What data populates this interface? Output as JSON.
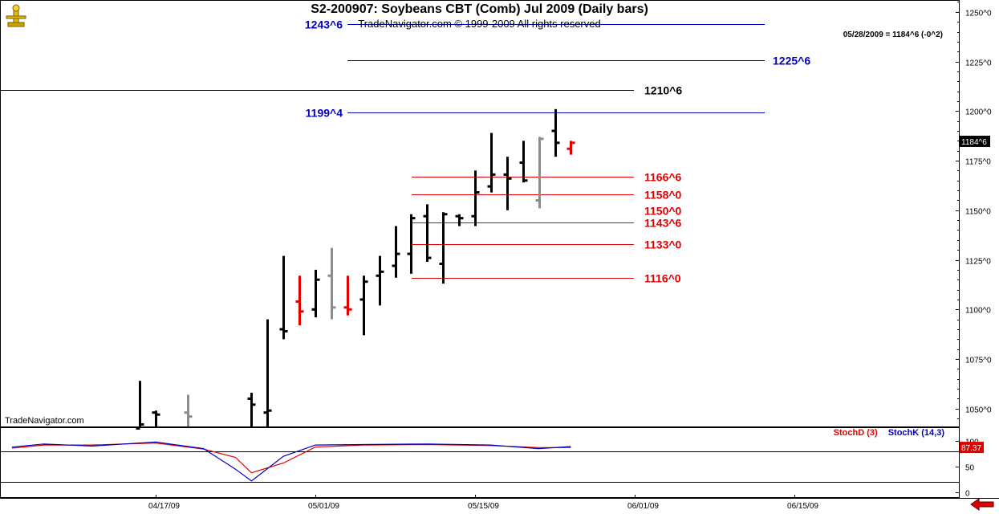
{
  "header": {
    "title": "S2-200907:  Soybeans CBT (Comb) Jul 2009  (Daily bars)",
    "subtitle": "TradeNavigator.com © 1999-2009 All rights reserved",
    "last_quote": "05/28/2009 = 1184^6 (-0^2)",
    "watermark": "TradeNavigator.com"
  },
  "colors": {
    "bar_black": "#000000",
    "bar_gray": "#8c8c8c",
    "bar_red": "#e00000",
    "resistance": "#0000c0",
    "support": "#e00000",
    "stoch_d": "#e00000",
    "stoch_k": "#0000c0"
  },
  "chart_data": [
    {
      "type": "ohlc",
      "title": "S2-200907:  Soybeans CBT (Comb) Jul 2009  (Daily bars)",
      "ylim": [
        1041,
        1256
      ],
      "y_ticks": [
        {
          "value": 1050,
          "label": "1050^0"
        },
        {
          "value": 1075,
          "label": "1075^0"
        },
        {
          "value": 1100,
          "label": "1100^0"
        },
        {
          "value": 1125,
          "label": "1125^0"
        },
        {
          "value": 1150,
          "label": "1150^0"
        },
        {
          "value": 1175,
          "label": "1175^0"
        },
        {
          "value": 1200,
          "label": "1200^0"
        },
        {
          "value": 1225,
          "label": "1225^0"
        },
        {
          "value": 1250,
          "label": "1250^0"
        }
      ],
      "x_ticks": [
        {
          "date": "2009-04-17",
          "label": "04/17/09"
        },
        {
          "date": "2009-05-01",
          "label": "05/01/09"
        },
        {
          "date": "2009-05-15",
          "label": "05/15/09"
        },
        {
          "date": "2009-06-01",
          "label": "06/01/09"
        },
        {
          "date": "2009-06-15",
          "label": "06/15/09"
        }
      ],
      "last_price": {
        "value": 1184.75,
        "label": "1184^6"
      },
      "bars": [
        {
          "date": "2009-04-16",
          "open": 1040,
          "high": 1064,
          "low": 1040,
          "close": 1042,
          "color": "black"
        },
        {
          "date": "2009-04-17",
          "open": 1048,
          "high": 1049,
          "low": 1040,
          "close": 1047,
          "color": "black"
        },
        {
          "date": "2009-04-21",
          "open": 1048,
          "high": 1057,
          "low": 1040,
          "close": 1046,
          "color": "gray"
        },
        {
          "date": "2009-04-27",
          "open": 1055,
          "high": 1058,
          "low": 1040,
          "close": 1052,
          "color": "black"
        },
        {
          "date": "2009-04-28",
          "open": 1048,
          "high": 1095,
          "low": 1040,
          "close": 1049,
          "color": "black"
        },
        {
          "date": "2009-04-29",
          "open": 1090,
          "high": 1127,
          "low": 1085,
          "close": 1089,
          "color": "black"
        },
        {
          "date": "2009-04-30",
          "open": 1104,
          "high": 1117,
          "low": 1092,
          "close": 1099,
          "color": "red"
        },
        {
          "date": "2009-05-01",
          "open": 1100,
          "high": 1120,
          "low": 1096,
          "close": 1115,
          "color": "black"
        },
        {
          "date": "2009-05-04",
          "open": 1117,
          "high": 1131,
          "low": 1095,
          "close": 1101,
          "color": "gray"
        },
        {
          "date": "2009-05-05",
          "open": 1101,
          "high": 1117,
          "low": 1097,
          "close": 1100,
          "color": "red"
        },
        {
          "date": "2009-05-06",
          "open": 1105,
          "high": 1117,
          "low": 1087,
          "close": 1114,
          "color": "black"
        },
        {
          "date": "2009-05-07",
          "open": 1117,
          "high": 1127,
          "low": 1102,
          "close": 1119,
          "color": "black"
        },
        {
          "date": "2009-05-08",
          "open": 1122,
          "high": 1142,
          "low": 1116,
          "close": 1128,
          "color": "black"
        },
        {
          "date": "2009-05-11",
          "open": 1128,
          "high": 1148,
          "low": 1118,
          "close": 1146,
          "color": "black"
        },
        {
          "date": "2009-05-12",
          "open": 1147,
          "high": 1153,
          "low": 1124,
          "close": 1126,
          "color": "black"
        },
        {
          "date": "2009-05-13",
          "open": 1123,
          "high": 1149,
          "low": 1113,
          "close": 1148,
          "color": "black"
        },
        {
          "date": "2009-05-14",
          "open": 1147,
          "high": 1148,
          "low": 1142,
          "close": 1146,
          "color": "black"
        },
        {
          "date": "2009-05-15",
          "open": 1147,
          "high": 1170,
          "low": 1142,
          "close": 1159,
          "color": "black"
        },
        {
          "date": "2009-05-18",
          "open": 1162,
          "high": 1189,
          "low": 1159,
          "close": 1168,
          "color": "black"
        },
        {
          "date": "2009-05-19",
          "open": 1168,
          "high": 1177,
          "low": 1150,
          "close": 1166,
          "color": "black"
        },
        {
          "date": "2009-05-20",
          "open": 1174,
          "high": 1185,
          "low": 1164,
          "close": 1165,
          "color": "black"
        },
        {
          "date": "2009-05-21",
          "open": 1155,
          "high": 1187,
          "low": 1151,
          "close": 1186,
          "color": "gray"
        },
        {
          "date": "2009-05-22",
          "open": 1190,
          "high": 1201,
          "low": 1177,
          "close": 1184,
          "color": "black"
        },
        {
          "date": "2009-05-26",
          "open": 1181,
          "high": 1185,
          "low": 1178,
          "close": 1184,
          "color": "red"
        }
      ],
      "resistance_lines": [
        {
          "value": 1243.75,
          "label": "1243^6"
        },
        {
          "value": 1225.75,
          "label": "1225^6"
        },
        {
          "value": 1199.5,
          "label": "1199^4"
        },
        {
          "value": 1210.75,
          "label": "1210^6"
        }
      ],
      "support_lines": [
        {
          "value": 1166.75,
          "label": "1166^6"
        },
        {
          "value": 1158,
          "label": "1158^0"
        },
        {
          "value": 1150,
          "label": "1150^0"
        },
        {
          "value": 1143.75,
          "label": "1143^6"
        },
        {
          "value": 1133,
          "label": "1133^0"
        },
        {
          "value": 1116,
          "label": "1116^0"
        }
      ]
    },
    {
      "type": "line",
      "ylim": [
        0,
        100
      ],
      "y_ticks": [
        {
          "value": 0,
          "label": "0"
        },
        {
          "value": 50,
          "label": "50"
        },
        {
          "value": 100,
          "label": "100"
        }
      ],
      "last_value": {
        "value": 87.37,
        "label": "87.37"
      },
      "series": [
        {
          "name": "StochD (3)",
          "color": "#e00000",
          "x": [
            "2009-04-03",
            "2009-04-07",
            "2009-04-13",
            "2009-04-17",
            "2009-04-22",
            "2009-04-24",
            "2009-04-27",
            "2009-04-29",
            "2009-05-01",
            "2009-05-06",
            "2009-05-12",
            "2009-05-18",
            "2009-05-21",
            "2009-05-26"
          ],
          "y": [
            86,
            92,
            92,
            96,
            84,
            68,
            38,
            57,
            88,
            92,
            93,
            91,
            87,
            87
          ]
        },
        {
          "name": "StochK (14,3)",
          "color": "#0000c0",
          "x": [
            "2009-04-03",
            "2009-04-07",
            "2009-04-13",
            "2009-04-17",
            "2009-04-22",
            "2009-04-24",
            "2009-04-27",
            "2009-04-29",
            "2009-05-01",
            "2009-05-06",
            "2009-05-12",
            "2009-05-18",
            "2009-05-21",
            "2009-05-26"
          ],
          "y": [
            88,
            94,
            90,
            98,
            85,
            45,
            22,
            70,
            92,
            93,
            94,
            92,
            85,
            89
          ]
        }
      ]
    }
  ],
  "ui": {
    "scroll_arrow": "left-arrow-icon",
    "logo": "trade-navigator-logo-icon"
  }
}
